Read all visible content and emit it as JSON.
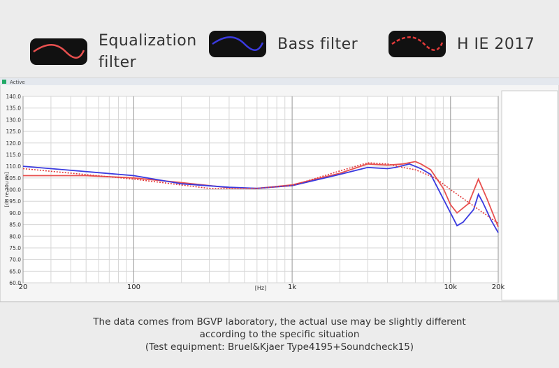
{
  "chart_data": {
    "type": "line",
    "window_title": "Active",
    "xlabel": "[Hz]",
    "ylabel": "[dB re 20u Pa]",
    "xscale": "log",
    "xlim": [
      20,
      20000
    ],
    "xticks": [
      20,
      100,
      {
        "value": 1000,
        "label": "1k"
      },
      {
        "value": 10000,
        "label": "10k"
      },
      {
        "value": 20000,
        "label": "20k"
      }
    ],
    "x_minor_grid": [
      30,
      40,
      50,
      60,
      70,
      80,
      90,
      200,
      300,
      400,
      500,
      600,
      700,
      800,
      900,
      2000,
      3000,
      4000,
      5000,
      6000,
      7000,
      8000,
      9000
    ],
    "ylim": [
      60,
      140
    ],
    "yticks": [
      {
        "value": 60,
        "label": "60.0"
      },
      {
        "value": 65,
        "label": "65.0"
      },
      {
        "value": 70,
        "label": "70.0"
      },
      {
        "value": 75,
        "label": "75.0"
      },
      {
        "value": 80,
        "label": "80.0"
      },
      {
        "value": 85,
        "label": "85.0"
      },
      {
        "value": 90,
        "label": "90.0"
      },
      {
        "value": 95,
        "label": "95.0"
      },
      {
        "value": 100,
        "label": "100.0"
      },
      {
        "value": 105,
        "label": "105.0"
      },
      {
        "value": 110,
        "label": "110.0"
      },
      {
        "value": 115,
        "label": "115.0"
      },
      {
        "value": 120,
        "label": "120.0"
      },
      {
        "value": 125,
        "label": "125.0"
      },
      {
        "value": 130,
        "label": "130.0"
      },
      {
        "value": 135,
        "label": "135.0"
      },
      {
        "value": 140,
        "label": "140.0"
      }
    ],
    "grid": true,
    "series": [
      {
        "name": "Equalization filter",
        "color": "#e8504f",
        "dash": false,
        "x": [
          20,
          50,
          100,
          200,
          400,
          600,
          1000,
          2000,
          3000,
          4000,
          5000,
          6000,
          6500,
          7500,
          9000,
          10000,
          11000,
          13000,
          15000,
          17000,
          20000
        ],
        "values": [
          106,
          106,
          105,
          103,
          100.8,
          100.5,
          102,
          107,
          111,
          110.5,
          111,
          112,
          111,
          108.5,
          100.5,
          93.5,
          90,
          94,
          104.5,
          96,
          84
        ]
      },
      {
        "name": "Bass filter",
        "color": "#3a3adf",
        "dash": false,
        "x": [
          20,
          100,
          200,
          400,
          600,
          1000,
          2000,
          3000,
          4000,
          4500,
          5500,
          6500,
          7500,
          9000,
          10000,
          11000,
          12000,
          14000,
          15000,
          16000,
          18000,
          20000
        ],
        "values": [
          110,
          106,
          102.5,
          101,
          100.5,
          101.7,
          106.5,
          109.5,
          109,
          109.5,
          111,
          109,
          106.5,
          96,
          90,
          84.5,
          86,
          91.5,
          98,
          94.5,
          87,
          81.5
        ]
      },
      {
        "name": "H IE 2017",
        "color": "#e23a3a",
        "dash": true,
        "x": [
          20,
          100,
          300,
          600,
          1000,
          2000,
          3000,
          4000,
          5000,
          6000,
          8000,
          10000,
          15000,
          20000
        ],
        "values": [
          109,
          104.5,
          100.5,
          100.5,
          101.7,
          108,
          111.5,
          111,
          109.5,
          108.5,
          105,
          100,
          91.5,
          85.5
        ]
      }
    ]
  },
  "caption": [
    "The data comes from BGVP laboratory, the actual use may be slightly different",
    "according to the specific situation",
    "(Test equipment: Bruel&Kjaer Type4195+Soundcheck15)"
  ]
}
